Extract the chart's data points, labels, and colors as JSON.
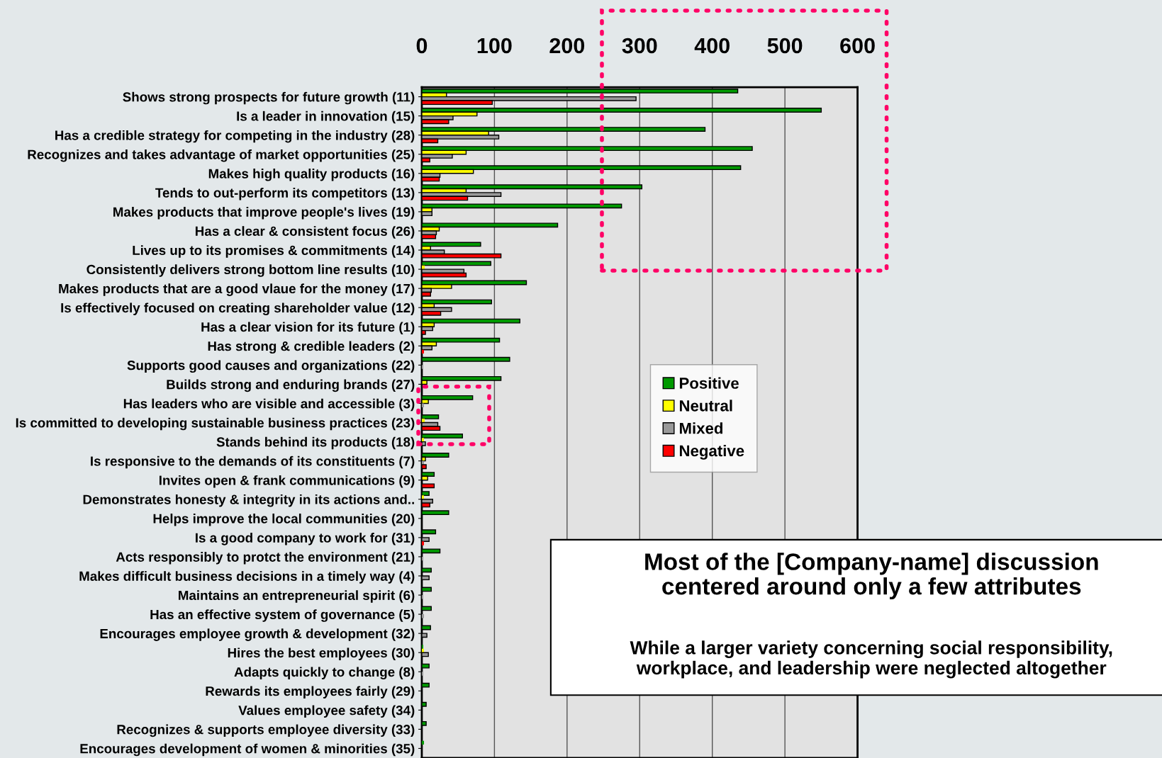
{
  "chart_data": {
    "type": "bar",
    "orientation": "horizontal",
    "categories": [
      "Shows strong prospects for future growth (11)",
      "Is a leader in innovation (15)",
      "Has a credible strategy for competing in the industry (28)",
      "Recognizes and takes advantage of market opportunities (25)",
      "Makes high quality products (16)",
      "Tends to out-perform its competitors (13)",
      "Makes products that improve people's lives (19)",
      "Has a clear & consistent focus (26)",
      "Lives up to its promises & commitments (14)",
      "Consistently delivers strong bottom line results (10)",
      "Makes products that are a good vlaue for the money (17)",
      "Is effectively focused on creating shareholder value (12)",
      "Has a clear vision for its future (1)",
      "Has strong & credible leaders (2)",
      "Supports good causes and organizations (22)",
      "Builds strong and enduring brands (27)",
      "Has leaders who are visible and accessible (3)",
      "Is committed to developing sustainable business practices (23)",
      "Stands behind its products (18)",
      "Is responsive to the demands of its constituents (7)",
      "Invites open & frank communications (9)",
      "Demonstrates honesty & integrity in its actions and..",
      "Helps improve the local communities (20)",
      "Is a good company to work for (31)",
      "Acts responsibly to protct the environment (21)",
      "Makes difficult business decisions in a timely way (4)",
      "Maintains an entrepreneurial spirit (6)",
      "Has an effective system of governance (5)",
      "Encourages employee growth & development (32)",
      "Hires the best employees (30)",
      "Adapts quickly to change (8)",
      "Rewards its employees fairly (29)",
      "Values employee safety (34)",
      "Recognizes & supports employee diversity (33)",
      "Encourages development of women & minorities (35)"
    ],
    "series": [
      {
        "name": "Positive",
        "color": "#009900",
        "values": [
          435,
          550,
          390,
          455,
          439,
          303,
          275,
          187,
          81,
          95,
          144,
          96,
          135,
          107,
          121,
          109,
          70,
          23,
          56,
          37,
          17,
          10,
          37,
          19,
          25,
          13,
          13,
          13,
          12,
          2,
          10,
          10,
          6,
          6,
          3
        ]
      },
      {
        "name": "Neutral",
        "color": "#ffff00",
        "values": [
          34,
          76,
          92,
          61,
          71,
          61,
          14,
          24,
          12,
          4,
          41,
          17,
          17,
          20,
          0,
          7,
          9,
          4,
          3,
          5,
          8,
          3,
          0,
          0,
          0,
          0,
          0,
          0,
          0,
          3,
          0,
          0,
          0,
          0,
          0
        ]
      },
      {
        "name": "Mixed",
        "color": "#999999",
        "values": [
          295,
          43,
          106,
          42,
          25,
          109,
          14,
          20,
          31,
          58,
          13,
          41,
          15,
          14,
          2,
          0,
          3,
          22,
          5,
          3,
          0,
          15,
          null,
          10,
          2,
          10,
          2,
          3,
          7,
          9,
          2,
          0,
          0,
          0,
          0
        ]
      },
      {
        "name": "Negative",
        "color": "#ff0000",
        "values": [
          97,
          37,
          22,
          11,
          24,
          63,
          0,
          19,
          109,
          61,
          12,
          26,
          5,
          3,
          0,
          0,
          0,
          25,
          0,
          6,
          17,
          11,
          0,
          3,
          0,
          0,
          0,
          0,
          0,
          0,
          0,
          0,
          0,
          0,
          0
        ]
      }
    ],
    "xlim": [
      0,
      600
    ],
    "xticks": [
      0,
      100,
      200,
      300,
      400,
      500,
      600
    ],
    "grid": "x",
    "legend": "right",
    "annotations": [
      "Most of the [Company-name] discussion centered around only a few attributes",
      "While a larger variety concerning social responsibility, workplace, and leadership were neglected altogether"
    ]
  }
}
